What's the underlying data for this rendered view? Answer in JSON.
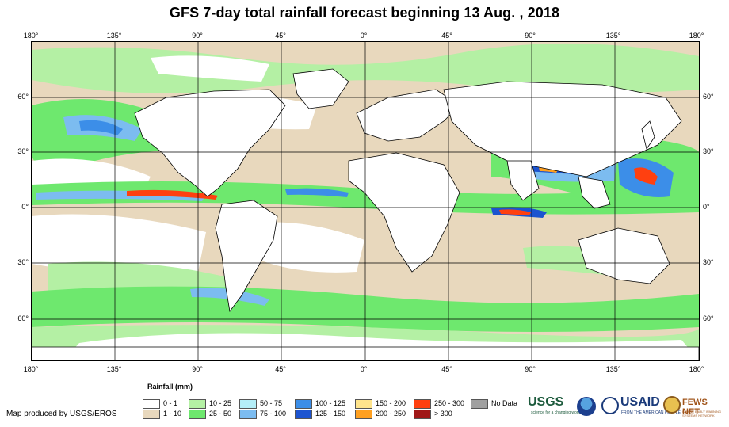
{
  "title": "GFS 7-day total rainfall forecast beginning 13 Aug. , 2018",
  "axes": {
    "lon_labels": [
      "180°",
      "135°",
      "90°",
      "45°",
      "0°",
      "45°",
      "90°",
      "135°",
      "180°"
    ],
    "lat_labels": [
      "60°",
      "30°",
      "0°",
      "30°",
      "60°"
    ]
  },
  "legend": {
    "title": "Rainfall (mm)",
    "items": [
      {
        "label": "0 - 1",
        "color": "#ffffff"
      },
      {
        "label": "1 - 10",
        "color": "#e8d8bd"
      },
      {
        "label": "10 - 25",
        "color": "#b4f0a4"
      },
      {
        "label": "25 - 50",
        "color": "#6ee86e"
      },
      {
        "label": "50 - 75",
        "color": "#b4eef8"
      },
      {
        "label": "75 - 100",
        "color": "#7cbcf0"
      },
      {
        "label": "100 - 125",
        "color": "#3c8ee8"
      },
      {
        "label": "125 - 150",
        "color": "#1c54d0"
      },
      {
        "label": "150 - 200",
        "color": "#ffe48c"
      },
      {
        "label": "200 - 250",
        "color": "#ffa020"
      },
      {
        "label": "250 - 300",
        "color": "#ff4010"
      },
      {
        "label": "> 300",
        "color": "#a01818"
      },
      {
        "label": "No Data",
        "color": "#a0a0a0"
      }
    ]
  },
  "credit": "Map produced by USGS/EROS",
  "logos": {
    "usgs": "USGS",
    "usgs_tagline": "science for a changing world",
    "usaid": "USAID",
    "usaid_tagline": "FROM THE AMERICAN PEOPLE",
    "fews": "FEWS NET",
    "fews_tagline": "FAMINE EARLY WARNING SYSTEMS NETWORK"
  }
}
